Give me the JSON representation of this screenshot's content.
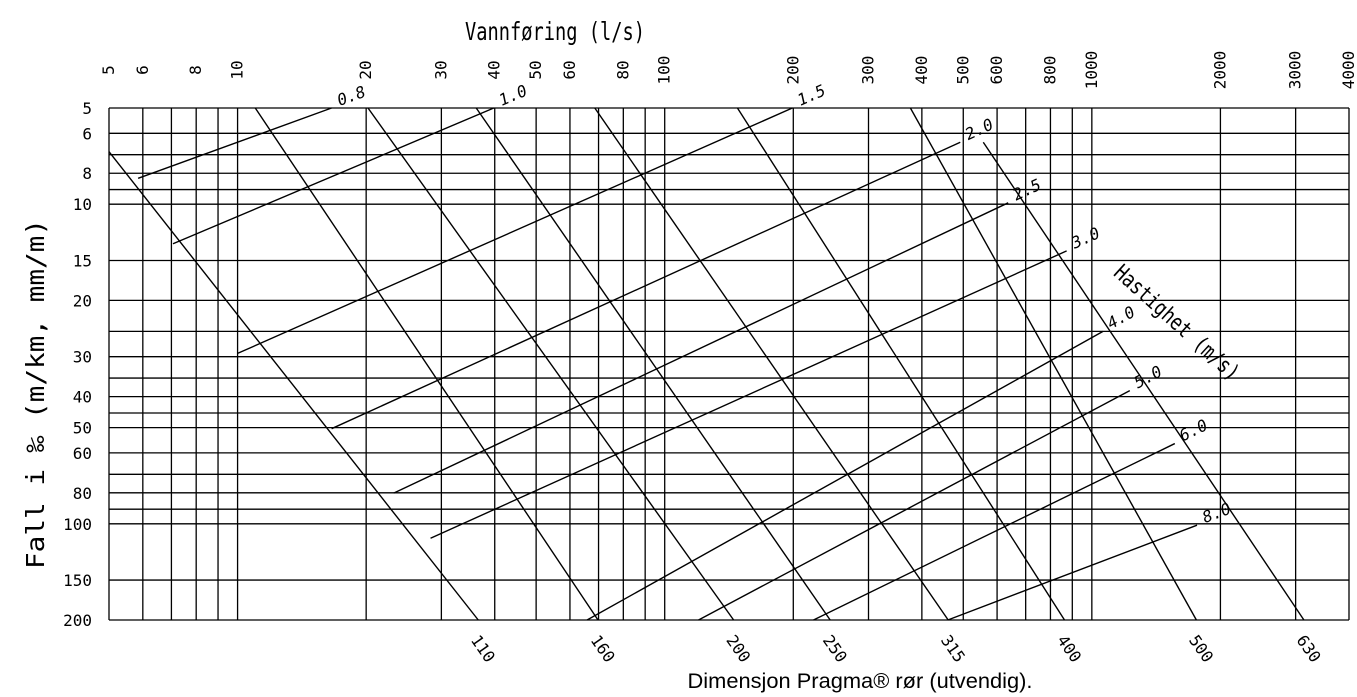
{
  "chart_data": {
    "type": "line",
    "title": "Vannføring (l/s)",
    "xlabel": "Vannføring (l/s)",
    "ylabel": "Fall i ‰ (m/km, mm/m)",
    "footer": "Dimensjon Pragma® rør (utvendig).",
    "velocity_title": "Hastighet (m/s)",
    "xscale": "log",
    "yscale": "log",
    "xlim": [
      5,
      4000
    ],
    "ylim": [
      5,
      200
    ],
    "y_inverted": true,
    "grid": true,
    "x_ticks": [
      {
        "value": 5,
        "label": "5"
      },
      {
        "value": 6,
        "label": "6"
      },
      {
        "value": 8,
        "label": "8"
      },
      {
        "value": 10,
        "label": "10"
      },
      {
        "value": 20,
        "label": "20"
      },
      {
        "value": 30,
        "label": "30"
      },
      {
        "value": 40,
        "label": "40"
      },
      {
        "value": 50,
        "label": "50"
      },
      {
        "value": 60,
        "label": "60"
      },
      {
        "value": 80,
        "label": "80"
      },
      {
        "value": 100,
        "label": "100"
      },
      {
        "value": 200,
        "label": "200"
      },
      {
        "value": 300,
        "label": "300"
      },
      {
        "value": 400,
        "label": "400"
      },
      {
        "value": 500,
        "label": "500"
      },
      {
        "value": 600,
        "label": "600"
      },
      {
        "value": 800,
        "label": "800"
      },
      {
        "value": 1000,
        "label": "1000"
      },
      {
        "value": 2000,
        "label": "2000"
      },
      {
        "value": 3000,
        "label": "3000"
      },
      {
        "value": 4000,
        "label": "4000"
      }
    ],
    "x_grid": [
      5,
      6,
      7,
      8,
      9,
      10,
      20,
      30,
      40,
      50,
      60,
      70,
      80,
      90,
      100,
      200,
      300,
      400,
      500,
      600,
      700,
      800,
      900,
      1000,
      2000,
      3000,
      4000
    ],
    "y_ticks": [
      {
        "value": 5,
        "label": "5"
      },
      {
        "value": 6,
        "label": "6"
      },
      {
        "value": 8,
        "label": "8"
      },
      {
        "value": 10,
        "label": "10"
      },
      {
        "value": 15,
        "label": "15"
      },
      {
        "value": 20,
        "label": "20"
      },
      {
        "value": 30,
        "label": "30"
      },
      {
        "value": 40,
        "label": "40"
      },
      {
        "value": 50,
        "label": "50"
      },
      {
        "value": 60,
        "label": "60"
      },
      {
        "value": 80,
        "label": "80"
      },
      {
        "value": 100,
        "label": "100"
      },
      {
        "value": 150,
        "label": "150"
      },
      {
        "value": 200,
        "label": "200"
      }
    ],
    "y_grid": [
      5,
      6,
      7,
      8,
      9,
      10,
      15,
      20,
      25,
      30,
      35,
      40,
      45,
      50,
      60,
      70,
      80,
      90,
      100,
      150,
      200
    ],
    "velocity_lines": [
      {
        "label": "0.8",
        "points": [
          [
            5.85,
            8.3
          ],
          [
            16.6,
            5.0
          ]
        ]
      },
      {
        "label": "1.0",
        "points": [
          [
            7.06,
            13.3
          ],
          [
            39.8,
            5.0
          ]
        ]
      },
      {
        "label": "1.5",
        "points": [
          [
            10.0,
            29.3
          ],
          [
            199,
            5.0
          ]
        ]
      },
      {
        "label": "2.0",
        "points": [
          [
            16.6,
            50.4
          ],
          [
            492,
            6.4
          ]
        ]
      },
      {
        "label": "2.5",
        "points": [
          [
            23.2,
            80.2
          ],
          [
            637,
            9.9
          ]
        ]
      },
      {
        "label": "3.0",
        "points": [
          [
            28.3,
            111
          ],
          [
            873,
            14.0
          ]
        ]
      },
      {
        "label": "4.0",
        "points": [
          [
            65.8,
            200
          ],
          [
            1062,
            25.0
          ]
        ]
      },
      {
        "label": "5.0",
        "points": [
          [
            120,
            200
          ],
          [
            1227,
            38.3
          ]
        ]
      },
      {
        "label": "6.0",
        "points": [
          [
            223,
            200
          ],
          [
            1564,
            56.1
          ]
        ]
      },
      {
        "label": "8.0",
        "points": [
          [
            460,
            200
          ],
          [
            1763,
            101
          ]
        ]
      }
    ],
    "dimension_lines": [
      {
        "label": "110",
        "points": [
          [
            5.0,
            6.85
          ],
          [
            36.6,
            200
          ]
        ]
      },
      {
        "label": "160",
        "points": [
          [
            11.0,
            5.0
          ],
          [
            69.8,
            200
          ]
        ]
      },
      {
        "label": "200",
        "points": [
          [
            20.2,
            5.0
          ],
          [
            145,
            200
          ]
        ]
      },
      {
        "label": "250",
        "points": [
          [
            36.2,
            5.0
          ],
          [
            244,
            200
          ]
        ]
      },
      {
        "label": "315",
        "points": [
          [
            68.6,
            5.0
          ],
          [
            461,
            200
          ]
        ]
      },
      {
        "label": "400",
        "points": [
          [
            148,
            5.0
          ],
          [
            863,
            200
          ]
        ]
      },
      {
        "label": "500",
        "points": [
          [
            376,
            5.0
          ],
          [
            1757,
            200
          ]
        ]
      },
      {
        "label": "630",
        "points": [
          [
            557,
            6.4
          ],
          [
            3137,
            200
          ]
        ]
      }
    ],
    "colors": {
      "lines": "#000000",
      "background": "#ffffff"
    }
  }
}
